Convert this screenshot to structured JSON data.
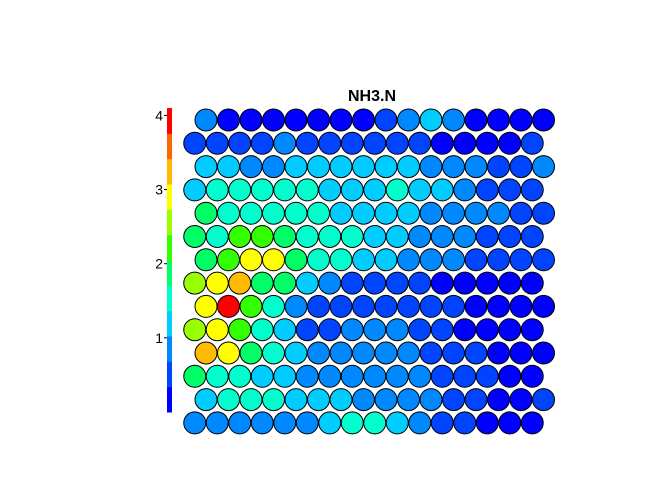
{
  "chart_data": {
    "type": "heatmap",
    "subtype": "som-hexagonal-property-map",
    "title": "NH3.N",
    "grid": {
      "rows": 14,
      "cols": 16,
      "topology": "hexagonal"
    },
    "colorbar": {
      "position": "left",
      "range": [
        0,
        4.1
      ],
      "ticks": [
        1,
        2,
        3,
        4
      ],
      "palette": [
        "#0000ff",
        "#0044ff",
        "#0088ff",
        "#00ccff",
        "#00ffcc",
        "#00ff66",
        "#33ff00",
        "#99ff00",
        "#ffff00",
        "#ffbb00",
        "#ff6600",
        "#ff0000"
      ]
    },
    "values": [
      [
        0.7,
        0.3,
        0.25,
        0.25,
        0.25,
        0.25,
        0.2,
        0.15,
        0.35,
        0.8,
        1.1,
        0.9,
        0.3,
        0.15,
        0.1,
        0.05
      ],
      [
        0.6,
        0.5,
        0.6,
        0.65,
        0.7,
        0.6,
        0.55,
        0.5,
        0.5,
        0.55,
        0.4,
        0.3,
        0.2,
        0.15,
        0.3,
        0.6
      ],
      [
        1.2,
        1.1,
        1.0,
        1.0,
        1.1,
        1.05,
        1.2,
        1.2,
        1.3,
        1.1,
        1.0,
        1.0,
        0.9,
        0.5,
        0.6,
        0.8
      ],
      [
        1.3,
        1.45,
        1.4,
        1.45,
        1.5,
        1.4,
        1.35,
        1.3,
        1.35,
        1.4,
        1.3,
        1.15,
        0.8,
        0.6,
        0.4,
        0.4
      ],
      [
        1.9,
        1.7,
        1.7,
        1.6,
        1.5,
        1.4,
        1.35,
        1.3,
        1.3,
        1.2,
        1.0,
        0.9,
        0.8,
        0.7,
        0.6,
        0.5
      ],
      [
        1.9,
        1.7,
        2.1,
        2.3,
        2.0,
        1.7,
        1.5,
        1.4,
        1.3,
        1.2,
        1.0,
        0.9,
        0.8,
        0.6,
        0.5,
        0.4
      ],
      [
        2.0,
        2.2,
        2.8,
        3.0,
        1.9,
        1.7,
        1.4,
        1.2,
        1.1,
        0.9,
        0.8,
        0.7,
        0.55,
        0.45,
        0.4,
        0.4
      ],
      [
        2.4,
        3.0,
        3.4,
        2.0,
        1.8,
        1.1,
        0.8,
        0.6,
        0.55,
        0.4,
        0.4,
        0.3,
        0.25,
        0.2,
        0.2,
        0.2
      ],
      [
        2.8,
        4.1,
        2.1,
        1.7,
        1.0,
        0.55,
        0.45,
        0.4,
        0.45,
        0.55,
        0.5,
        0.45,
        0.3,
        0.2,
        0.2,
        0.2
      ],
      [
        2.6,
        2.8,
        2.2,
        1.6,
        1.1,
        0.6,
        0.55,
        0.7,
        1.0,
        0.8,
        0.55,
        0.45,
        0.3,
        0.25,
        0.2,
        0.2
      ],
      [
        3.4,
        2.8,
        1.8,
        1.4,
        1.3,
        1.0,
        0.8,
        0.7,
        0.8,
        0.7,
        0.6,
        0.5,
        0.4,
        0.3,
        0.2,
        0.2
      ],
      [
        1.75,
        1.6,
        1.4,
        1.3,
        1.2,
        1.0,
        1.0,
        0.9,
        0.9,
        0.8,
        0.7,
        0.6,
        0.5,
        0.4,
        0.3,
        0.3
      ],
      [
        1.2,
        1.6,
        1.5,
        1.4,
        1.3,
        1.2,
        1.1,
        1.0,
        1.0,
        0.9,
        0.75,
        0.65,
        0.4,
        0.3,
        0.3,
        0.4
      ],
      [
        0.9,
        0.8,
        0.7,
        0.7,
        0.7,
        0.8,
        1.1,
        1.4,
        1.6,
        1.1,
        0.7,
        0.5,
        0.4,
        0.3,
        0.3,
        0.3
      ]
    ]
  }
}
